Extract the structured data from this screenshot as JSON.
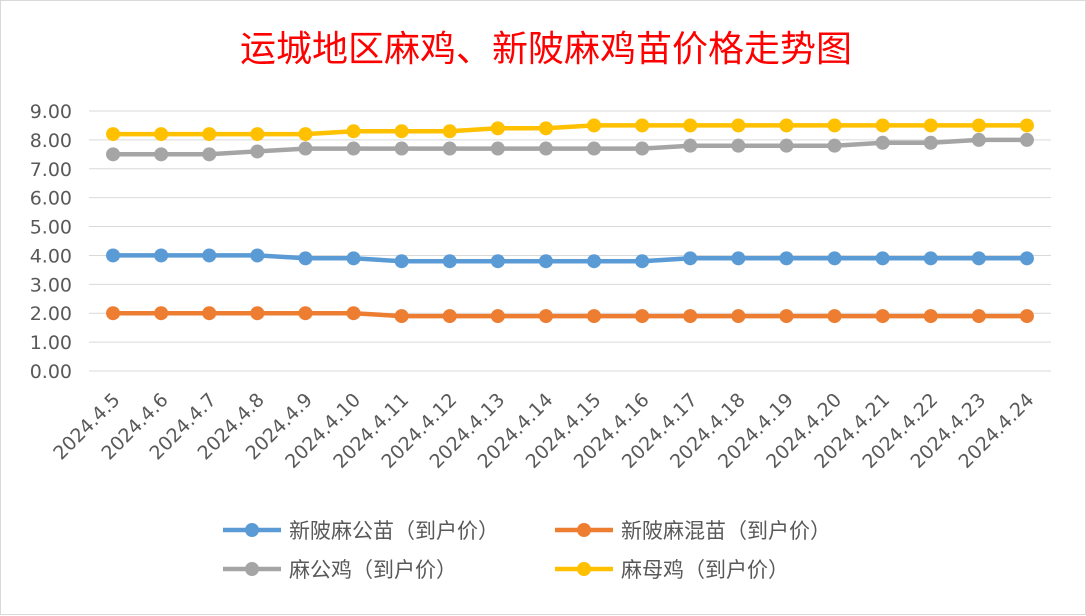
{
  "chart_data": {
    "type": "line",
    "title": "运城地区麻鸡、新陂麻鸡苗价格走势图",
    "xlabel": "",
    "ylabel": "",
    "categories": [
      "2024.4.5",
      "2024.4.6",
      "2024.4.7",
      "2024.4.8",
      "2024.4.9",
      "2024.4.10",
      "2024.4.11",
      "2024.4.12",
      "2024.4.13",
      "2024.4.14",
      "2024.4.15",
      "2024.4.16",
      "2024.4.17",
      "2024.4.18",
      "2024.4.19",
      "2024.4.20",
      "2024.4.21",
      "2024.4.22",
      "2024.4.23",
      "2024.4.24"
    ],
    "y_ticks": [
      "0.00",
      "1.00",
      "2.00",
      "3.00",
      "4.00",
      "5.00",
      "6.00",
      "7.00",
      "8.00",
      "9.00"
    ],
    "ylim": [
      0,
      9
    ],
    "grid": "horizontal",
    "legend_position": "bottom",
    "series": [
      {
        "name": "新陂麻公苗（到户价）",
        "color": "#5b9bd5",
        "values": [
          4.0,
          4.0,
          4.0,
          4.0,
          3.9,
          3.9,
          3.8,
          3.8,
          3.8,
          3.8,
          3.8,
          3.8,
          3.9,
          3.9,
          3.9,
          3.9,
          3.9,
          3.9,
          3.9,
          3.9
        ]
      },
      {
        "name": "新陂麻混苗（到户价）",
        "color": "#ed7d31",
        "values": [
          2.0,
          2.0,
          2.0,
          2.0,
          2.0,
          2.0,
          1.9,
          1.9,
          1.9,
          1.9,
          1.9,
          1.9,
          1.9,
          1.9,
          1.9,
          1.9,
          1.9,
          1.9,
          1.9,
          1.9
        ]
      },
      {
        "name": "麻公鸡（到户价）",
        "color": "#a5a5a5",
        "values": [
          7.5,
          7.5,
          7.5,
          7.6,
          7.7,
          7.7,
          7.7,
          7.7,
          7.7,
          7.7,
          7.7,
          7.7,
          7.8,
          7.8,
          7.8,
          7.8,
          7.9,
          7.9,
          8.0,
          8.0
        ]
      },
      {
        "name": "麻母鸡（到户价）",
        "color": "#ffc000",
        "values": [
          8.2,
          8.2,
          8.2,
          8.2,
          8.2,
          8.3,
          8.3,
          8.3,
          8.4,
          8.4,
          8.5,
          8.5,
          8.5,
          8.5,
          8.5,
          8.5,
          8.5,
          8.5,
          8.5,
          8.5
        ]
      }
    ]
  }
}
